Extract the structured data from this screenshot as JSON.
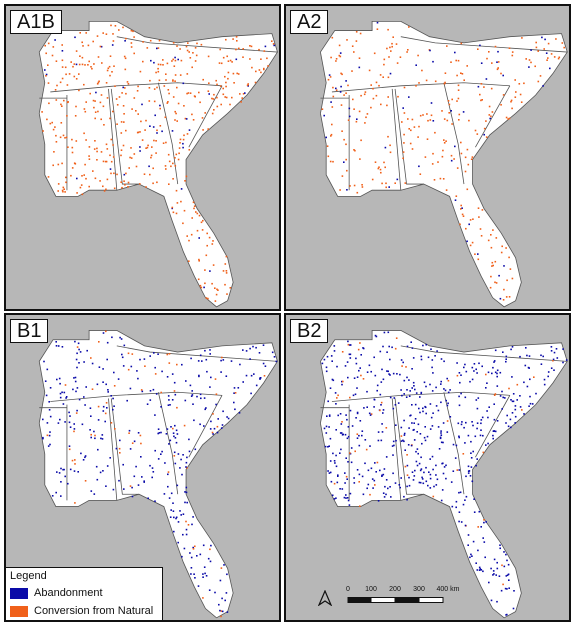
{
  "panels": [
    {
      "label": "A1B",
      "orange_density": 1.0,
      "blue_density": 0.12
    },
    {
      "label": "A2",
      "orange_density": 0.8,
      "blue_density": 0.12
    },
    {
      "label": "B1",
      "orange_density": 0.18,
      "blue_density": 0.9
    },
    {
      "label": "B2",
      "orange_density": 0.12,
      "blue_density": 1.4
    }
  ],
  "legend": {
    "title": "Legend",
    "items": [
      {
        "label": "Abandonment",
        "color": "#0a0aa8"
      },
      {
        "label": "Conversion from Natural",
        "color": "#f0601a"
      }
    ]
  },
  "scale": {
    "ticks": [
      "0",
      "100",
      "200",
      "300",
      "400 km"
    ]
  },
  "colors": {
    "land_other": "#b7b7b7",
    "region": "#ffffff",
    "border": "#555555"
  }
}
